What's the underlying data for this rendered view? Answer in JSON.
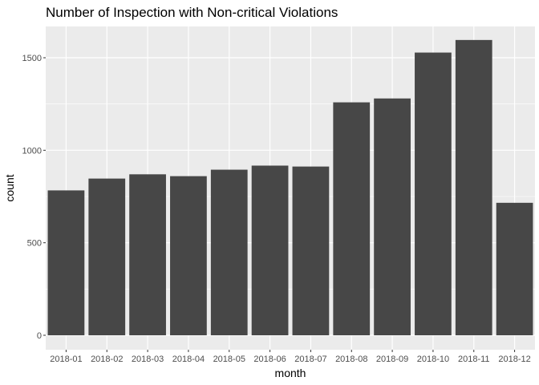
{
  "chart_data": {
    "type": "bar",
    "title": "Number of Inspection with Non-critical Violations",
    "xlabel": "month",
    "ylabel": "count",
    "categories": [
      "2018-01",
      "2018-02",
      "2018-03",
      "2018-04",
      "2018-05",
      "2018-06",
      "2018-07",
      "2018-08",
      "2018-09",
      "2018-10",
      "2018-11",
      "2018-12"
    ],
    "values": [
      783,
      847,
      870,
      860,
      895,
      917,
      912,
      1259,
      1280,
      1528,
      1596,
      716
    ],
    "yticks": [
      0,
      500,
      1000,
      1500
    ],
    "ylim": [
      0,
      1600
    ],
    "grid": true,
    "legend": "none",
    "colors": {
      "panel_background": "#ebebeb",
      "grid_major": "#ffffff",
      "bar_fill": "#474747",
      "tick_text": "#4d4d4d",
      "tick_mark": "#333333"
    }
  }
}
